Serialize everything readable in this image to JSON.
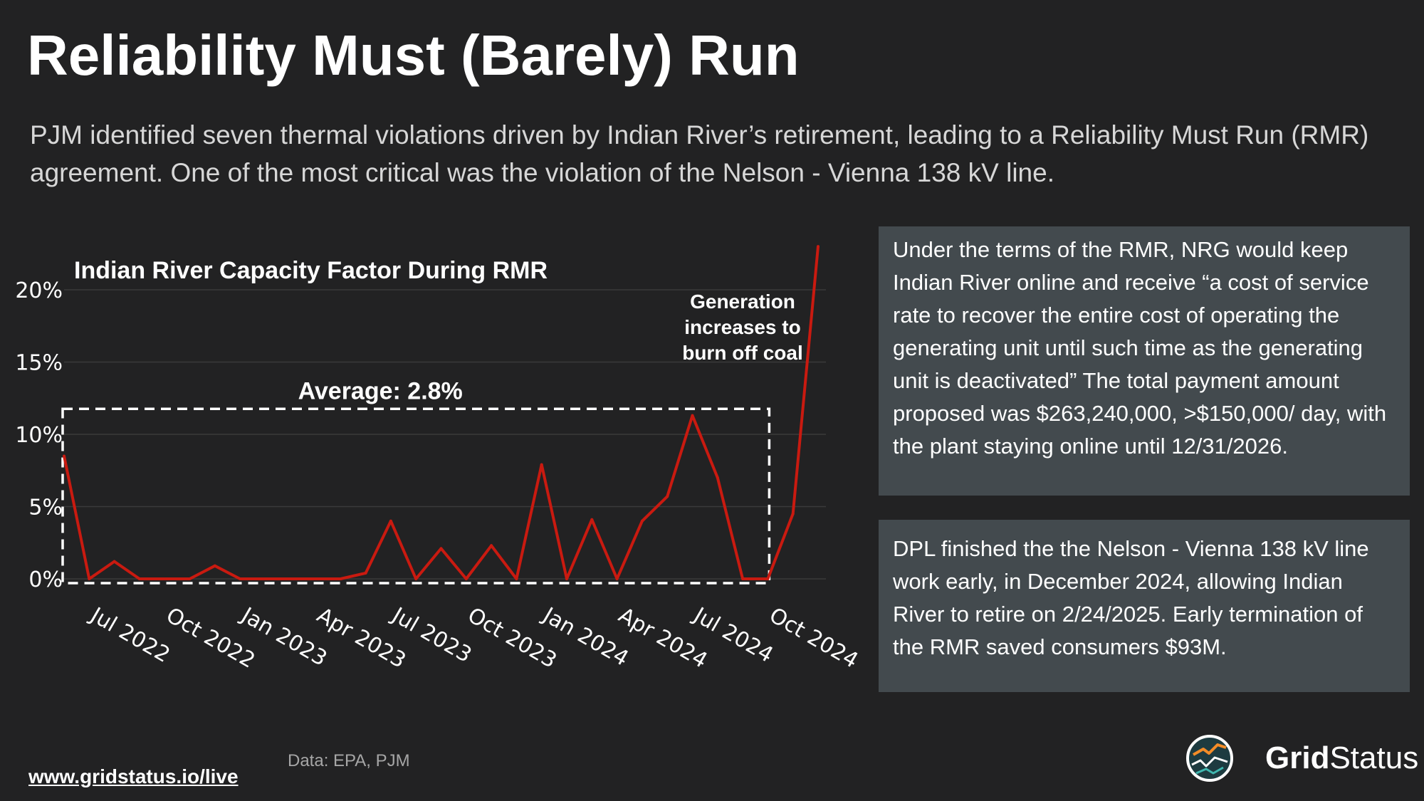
{
  "title": "Reliability Must (Barely) Run",
  "subtitle": "PJM identified seven thermal violations driven by Indian River’s retirement, leading to a Reliability Must Run (RMR) agreement. One of the most critical was the violation of the Nelson - Vienna 138 kV line.",
  "info_box_1": "Under the terms of the RMR, NRG would keep Indian River online and receive “a cost of service rate to recover the entire cost of operating the generating unit until such time as the generating unit is deactivated” The total payment amount proposed was $263,240,000, >$150,000/ day, with the plant staying online until 12/31/2026.",
  "info_box_2": "DPL finished the the Nelson - Vienna 138 kV line work early, in December 2024, allowing Indian River to retire on 2/24/2025. Early termination of the RMR saved consumers $93M.",
  "footer_link": "www.gridstatus.io/live",
  "source": "Data: EPA, PJM",
  "logo": {
    "name": "grid-status-logo",
    "word1": "Grid",
    "word2": "Status"
  },
  "colors": {
    "background": "#222223",
    "line": "#c91a10",
    "box": "#434a4e"
  },
  "chart_data": {
    "type": "line",
    "title": "Indian River Capacity Factor During RMR",
    "xlabel": "",
    "ylabel": "",
    "ylim": [
      0,
      23
    ],
    "yticks": [
      0,
      5,
      10,
      15,
      20
    ],
    "ytick_labels": [
      "0%",
      "5%",
      "10%",
      "15%",
      "20%"
    ],
    "xtick_labels": [
      "Jul 2022",
      "Oct 2022",
      "Jan 2023",
      "Apr 2023",
      "Jul 2023",
      "Oct 2023",
      "Jan 2024",
      "Apr 2024",
      "Jul 2024",
      "Oct 2024"
    ],
    "xtick_indices": [
      1,
      4,
      7,
      10,
      13,
      16,
      19,
      22,
      25,
      28
    ],
    "x": [
      "Jun 2022",
      "Jul 2022",
      "Aug 2022",
      "Sep 2022",
      "Oct 2022",
      "Nov 2022",
      "Dec 2022",
      "Jan 2023",
      "Feb 2023",
      "Mar 2023",
      "Apr 2023",
      "May 2023",
      "Jun 2023",
      "Jul 2023",
      "Aug 2023",
      "Sep 2023",
      "Oct 2023",
      "Nov 2023",
      "Dec 2023",
      "Jan 2024",
      "Feb 2024",
      "Mar 2024",
      "Apr 2024",
      "May 2024",
      "Jun 2024",
      "Jul 2024",
      "Aug 2024",
      "Sep 2024",
      "Oct 2024",
      "Nov 2024",
      "Dec 2024"
    ],
    "series": [
      {
        "name": "Capacity Factor (%)",
        "values": [
          8.5,
          0.0,
          1.2,
          0.0,
          0.0,
          0.0,
          0.9,
          0.0,
          0.0,
          0.0,
          0.0,
          0.0,
          0.4,
          4.0,
          0.0,
          2.1,
          0.0,
          2.3,
          0.0,
          7.9,
          0.0,
          4.1,
          0.0,
          4.0,
          5.7,
          11.3,
          7.0,
          0.0,
          0.0,
          4.5,
          23.0
        ]
      }
    ],
    "average": {
      "label": "Average: 2.8%",
      "value": 2.8,
      "x_start_index": 0,
      "x_end_index": 28
    },
    "annotation": {
      "line1": "Generation",
      "line2": "increases to",
      "line3": "burn off coal"
    }
  }
}
